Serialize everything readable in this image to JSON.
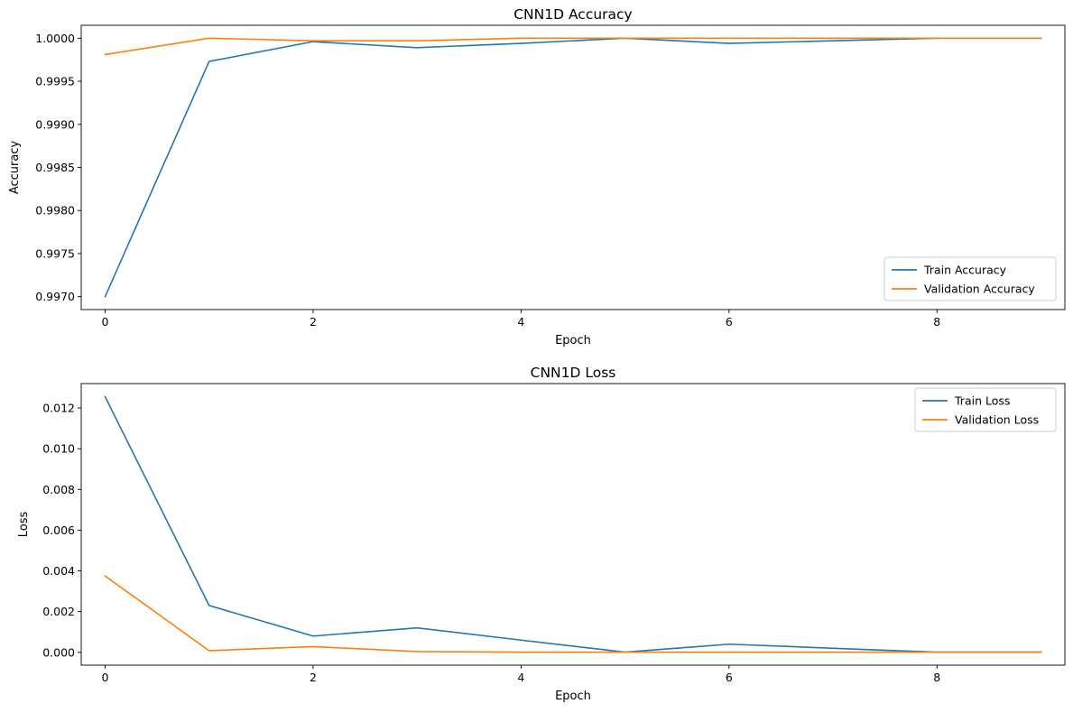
{
  "chart_data": [
    {
      "type": "line",
      "title": "CNN1D Accuracy",
      "xlabel": "Epoch",
      "ylabel": "Accuracy",
      "x": [
        0,
        1,
        2,
        3,
        4,
        5,
        6,
        7,
        8,
        9
      ],
      "xlim": [
        -0.23,
        9.23
      ],
      "ylim": [
        0.99685,
        1.00015
      ],
      "xticks": [
        0,
        2,
        4,
        6,
        8
      ],
      "xtick_labels": [
        "0",
        "2",
        "4",
        "6",
        "8"
      ],
      "yticks": [
        0.997,
        0.9975,
        0.998,
        0.9985,
        0.999,
        0.9995,
        1.0
      ],
      "ytick_labels": [
        "0.9970",
        "0.9975",
        "0.9980",
        "0.9985",
        "0.9990",
        "0.9995",
        "1.0000"
      ],
      "grid": false,
      "legend_position": "bottom-right",
      "series": [
        {
          "name": "Train Accuracy",
          "color": "#1f77b4",
          "values": [
            0.997,
            0.99973,
            0.99996,
            0.99989,
            0.99994,
            1.0,
            0.99994,
            0.99997,
            1.0,
            1.0
          ]
        },
        {
          "name": "Validation Accuracy",
          "color": "#ff7f0e",
          "values": [
            0.99981,
            1.0,
            0.99997,
            0.99997,
            1.0,
            1.0,
            1.0,
            1.0,
            1.0,
            1.0
          ]
        }
      ]
    },
    {
      "type": "line",
      "title": "CNN1D Loss",
      "xlabel": "Epoch",
      "ylabel": "Loss",
      "x": [
        0,
        1,
        2,
        3,
        4,
        5,
        6,
        7,
        8,
        9
      ],
      "xlim": [
        -0.23,
        9.23
      ],
      "ylim": [
        -0.00063,
        0.0132
      ],
      "xticks": [
        0,
        2,
        4,
        6,
        8
      ],
      "xtick_labels": [
        "0",
        "2",
        "4",
        "6",
        "8"
      ],
      "yticks": [
        0.0,
        0.002,
        0.004,
        0.006,
        0.008,
        0.01,
        0.012
      ],
      "ytick_labels": [
        "0.000",
        "0.002",
        "0.004",
        "0.006",
        "0.008",
        "0.010",
        "0.012"
      ],
      "grid": false,
      "legend_position": "top-right",
      "series": [
        {
          "name": "Train Loss",
          "color": "#1f77b4",
          "values": [
            0.01255,
            0.0023,
            0.0008,
            0.0012,
            0.0006,
            1e-05,
            0.0004,
            0.0002,
            1e-05,
            1e-05
          ]
        },
        {
          "name": "Validation Loss",
          "color": "#ff7f0e",
          "values": [
            0.00375,
            8e-05,
            0.00028,
            4e-05,
            1e-05,
            1e-05,
            1e-05,
            1e-05,
            1e-05,
            1e-05
          ]
        }
      ]
    }
  ]
}
